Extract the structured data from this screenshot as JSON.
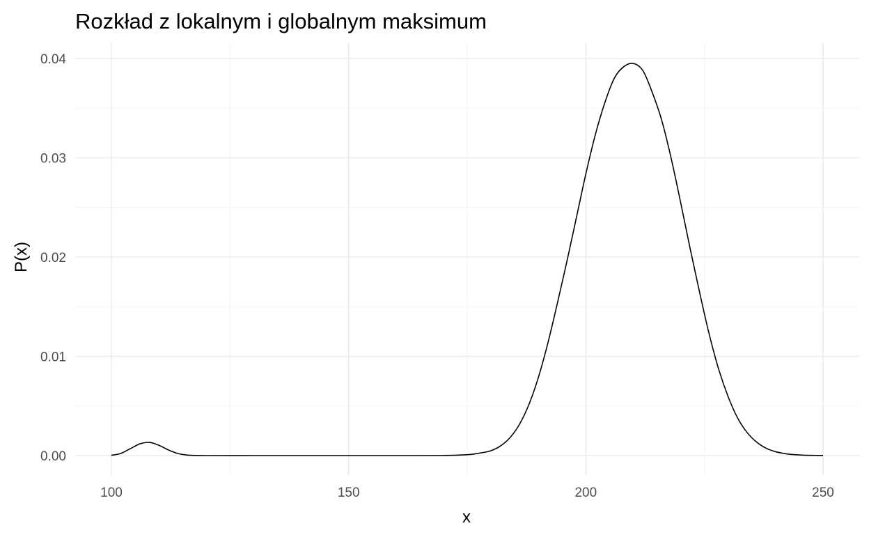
{
  "chart_data": {
    "type": "line",
    "title": "Rozkład z lokalnym i globalnym maksimum",
    "xlabel": "x",
    "ylabel": "P(x)",
    "xlim": [
      100,
      250
    ],
    "ylim": [
      0,
      0.04
    ],
    "x_ticks": [
      100,
      150,
      200,
      250
    ],
    "x_tick_labels": [
      "100",
      "150",
      "200",
      "250"
    ],
    "y_ticks": [
      0,
      0.01,
      0.02,
      0.03,
      0.04
    ],
    "y_tick_labels": [
      "0.00",
      "0.01",
      "0.02",
      "0.03",
      "0.04"
    ],
    "grid": true,
    "legend": "none",
    "series": [
      {
        "color": "#000000",
        "x": [
          100,
          102,
          104,
          106,
          108,
          110,
          112,
          114,
          116,
          120,
          130,
          140,
          150,
          160,
          170,
          175,
          178,
          180,
          182,
          184,
          186,
          188,
          190,
          192,
          194,
          196,
          198,
          200,
          202,
          204,
          206,
          208,
          210,
          212,
          214,
          216,
          218,
          220,
          222,
          224,
          226,
          228,
          230,
          232,
          234,
          236,
          238,
          240,
          242,
          244,
          246,
          248,
          250
        ],
        "y": [
          3e-05,
          0.00022,
          0.0007,
          0.00118,
          0.00133,
          0.00104,
          0.00057,
          0.00021,
          5e-05,
          0,
          0,
          0,
          0,
          0,
          1e-05,
          9e-05,
          0.00028,
          0.00049,
          0.00097,
          0.0018,
          0.00314,
          0.00514,
          0.00788,
          0.01134,
          0.01534,
          0.01954,
          0.02395,
          0.02837,
          0.03232,
          0.03554,
          0.03801,
          0.03918,
          0.0395,
          0.0388,
          0.03659,
          0.03377,
          0.02992,
          0.02546,
          0.02082,
          0.0164,
          0.01224,
          0.0087,
          0.00593,
          0.00378,
          0.00232,
          0.00136,
          0.00074,
          0.00039,
          0.0002,
          9e-05,
          4e-05,
          2e-05,
          1e-05
        ]
      }
    ]
  }
}
